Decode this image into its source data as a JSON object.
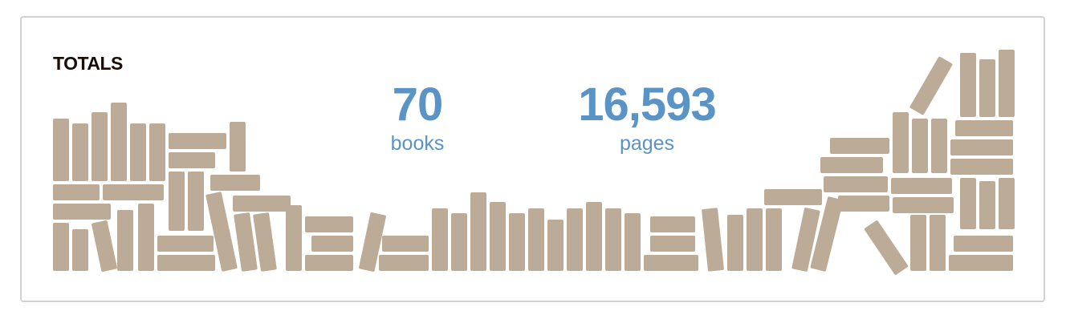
{
  "colors": {
    "accent": "#5a93c6",
    "book": "#bcab97",
    "title": "#1b0c05",
    "border": "#d2d2d2"
  },
  "totals": {
    "title": "TOTALS",
    "books": {
      "value": "70",
      "label": "books"
    },
    "pages": {
      "value": "16,593",
      "label": "pages"
    }
  },
  "decoration": {
    "icon": "bookshelf-illustration"
  }
}
